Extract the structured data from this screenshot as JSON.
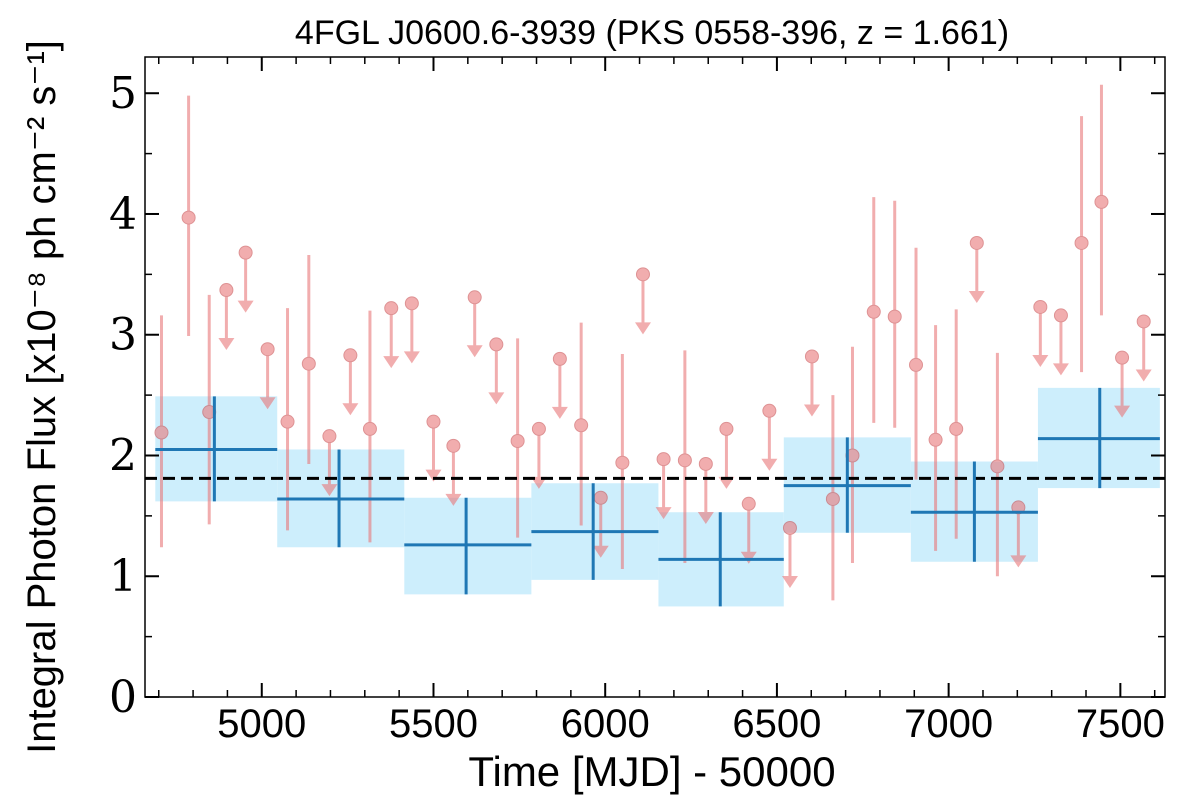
{
  "chart_data": {
    "type": "scatter",
    "title": "4FGL J0600.6-3939 (PKS 0558-396, z = 1.661)",
    "xlabel": "Time [MJD] - 50000",
    "ylabel": "Integral Photon Flux [x10⁻⁸ ph cm⁻² s⁻¹]",
    "xlim": [
      4660,
      7630
    ],
    "ylim": [
      0,
      5.3
    ],
    "xticks": [
      5000,
      5500,
      6000,
      6500,
      7000,
      7500
    ],
    "xtick_labels": [
      "5000",
      "5500",
      "6000",
      "6500",
      "7000",
      "7500"
    ],
    "yticks": [
      0,
      1,
      2,
      3,
      4,
      5
    ],
    "ytick_labels": [
      "0",
      "1",
      "2",
      "3",
      "4",
      "5"
    ],
    "mean_flux": 1.81,
    "colors": {
      "points": "#e8777a",
      "bins": "#1f77b4",
      "bands": "#cdeefc",
      "mean": "#000000"
    },
    "series": [
      {
        "type": "measurements",
        "points": [
          {
            "x": 4708,
            "y": 2.19,
            "lo": 1.24,
            "hi": 3.16
          },
          {
            "x": 4787,
            "y": 3.97,
            "lo": 2.99,
            "hi": 4.98
          },
          {
            "x": 4847,
            "y": 2.36,
            "lo": 1.43,
            "hi": 3.33
          },
          {
            "x": 5075,
            "y": 2.28,
            "lo": 1.38,
            "hi": 3.22
          },
          {
            "x": 5137,
            "y": 2.76,
            "lo": 1.93,
            "hi": 3.66
          },
          {
            "x": 5315,
            "y": 2.22,
            "lo": 1.28,
            "hi": 3.2
          },
          {
            "x": 5745,
            "y": 2.12,
            "lo": 1.32,
            "hi": 2.97
          },
          {
            "x": 5930,
            "y": 2.25,
            "lo": 1.42,
            "hi": 3.1
          },
          {
            "x": 6050,
            "y": 1.94,
            "lo": 1.06,
            "hi": 2.84
          },
          {
            "x": 6232,
            "y": 1.96,
            "lo": 1.11,
            "hi": 2.87
          },
          {
            "x": 6663,
            "y": 1.64,
            "lo": 0.8,
            "hi": 2.5
          },
          {
            "x": 6720,
            "y": 2.0,
            "lo": 1.11,
            "hi": 2.9
          },
          {
            "x": 6782,
            "y": 3.19,
            "lo": 2.27,
            "hi": 4.14
          },
          {
            "x": 6843,
            "y": 3.15,
            "lo": 2.23,
            "hi": 4.11
          },
          {
            "x": 6905,
            "y": 2.75,
            "lo": 1.8,
            "hi": 3.72
          },
          {
            "x": 6962,
            "y": 2.13,
            "lo": 1.21,
            "hi": 3.08
          },
          {
            "x": 7022,
            "y": 2.22,
            "lo": 1.31,
            "hi": 3.21
          },
          {
            "x": 7142,
            "y": 1.91,
            "lo": 1.0,
            "hi": 2.85
          },
          {
            "x": 7387,
            "y": 3.76,
            "lo": 2.69,
            "hi": 4.81
          },
          {
            "x": 7445,
            "y": 4.1,
            "lo": 3.16,
            "hi": 5.07
          }
        ]
      },
      {
        "type": "upper_limits",
        "points": [
          {
            "x": 4897,
            "y": 3.37
          },
          {
            "x": 4953,
            "y": 3.68
          },
          {
            "x": 5017,
            "y": 2.88
          },
          {
            "x": 5197,
            "y": 2.16
          },
          {
            "x": 5258,
            "y": 2.83
          },
          {
            "x": 5377,
            "y": 3.22
          },
          {
            "x": 5437,
            "y": 3.26
          },
          {
            "x": 5500,
            "y": 2.28
          },
          {
            "x": 5558,
            "y": 2.08
          },
          {
            "x": 5620,
            "y": 3.31
          },
          {
            "x": 5683,
            "y": 2.92
          },
          {
            "x": 5807,
            "y": 2.22
          },
          {
            "x": 5868,
            "y": 2.8
          },
          {
            "x": 5987,
            "y": 1.65
          },
          {
            "x": 6110,
            "y": 3.5
          },
          {
            "x": 6170,
            "y": 1.97
          },
          {
            "x": 6293,
            "y": 1.93
          },
          {
            "x": 6353,
            "y": 2.22
          },
          {
            "x": 6418,
            "y": 1.6
          },
          {
            "x": 6478,
            "y": 2.37
          },
          {
            "x": 6538,
            "y": 1.4
          },
          {
            "x": 6602,
            "y": 2.82
          },
          {
            "x": 7082,
            "y": 3.76
          },
          {
            "x": 7203,
            "y": 1.57
          },
          {
            "x": 7267,
            "y": 3.23
          },
          {
            "x": 7327,
            "y": 3.16
          },
          {
            "x": 7505,
            "y": 2.81
          },
          {
            "x": 7568,
            "y": 3.11
          }
        ]
      },
      {
        "type": "binned",
        "bins": [
          {
            "x0": 4690,
            "x1": 5045,
            "xc": 4862,
            "y": 2.05,
            "lo": 1.62,
            "hi": 2.49
          },
          {
            "x0": 5045,
            "x1": 5415,
            "xc": 5225,
            "y": 1.64,
            "lo": 1.24,
            "hi": 2.05
          },
          {
            "x0": 5415,
            "x1": 5785,
            "xc": 5595,
            "y": 1.26,
            "lo": 0.85,
            "hi": 1.65
          },
          {
            "x0": 5785,
            "x1": 6155,
            "xc": 5965,
            "y": 1.37,
            "lo": 0.97,
            "hi": 1.77
          },
          {
            "x0": 6155,
            "x1": 6520,
            "xc": 6335,
            "y": 1.14,
            "lo": 0.75,
            "hi": 1.53
          },
          {
            "x0": 6520,
            "x1": 6890,
            "xc": 6705,
            "y": 1.75,
            "lo": 1.36,
            "hi": 2.15
          },
          {
            "x0": 6890,
            "x1": 7260,
            "xc": 7075,
            "y": 1.53,
            "lo": 1.12,
            "hi": 1.95
          },
          {
            "x0": 7260,
            "x1": 7615,
            "xc": 7440,
            "y": 2.14,
            "lo": 1.73,
            "hi": 2.56
          }
        ]
      }
    ]
  }
}
